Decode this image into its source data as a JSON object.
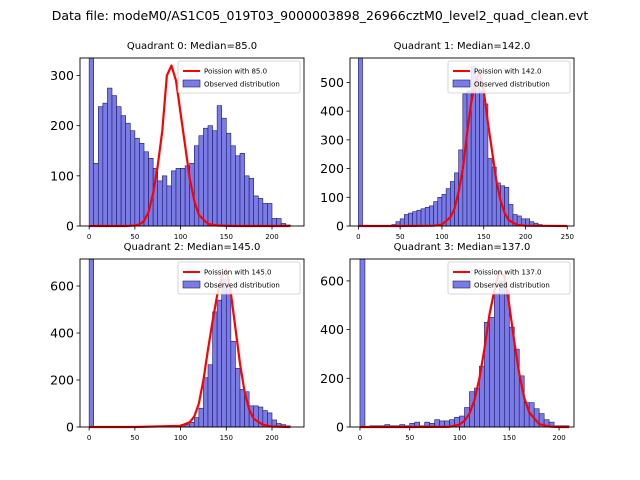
{
  "figure": {
    "suptitle": "Data file: modeM0/AS1C05_019T03_9000003898_26966cztM0_level2_quad_clean.evt"
  },
  "chart_data": [
    {
      "type": "bar",
      "title": "Quadrant 0: Median=85.0",
      "xlim": [
        -10,
        235
      ],
      "ylim": [
        0,
        335
      ],
      "xticks": [
        0,
        50,
        100,
        150,
        200
      ],
      "yticks": [
        0,
        100,
        200,
        300
      ],
      "legend": [
        "Poission with 85.0",
        "Observed distribution"
      ],
      "legend_position": "upper right",
      "hist": {
        "bin_width": 5,
        "bin_starts": [
          0,
          5,
          10,
          15,
          20,
          25,
          30,
          35,
          40,
          45,
          50,
          55,
          60,
          65,
          70,
          75,
          80,
          85,
          90,
          95,
          100,
          105,
          110,
          115,
          120,
          125,
          130,
          135,
          140,
          145,
          150,
          155,
          160,
          165,
          170,
          175,
          180,
          185,
          190,
          195,
          200,
          205,
          210,
          215
        ],
        "counts": [
          335,
          125,
          238,
          245,
          275,
          260,
          238,
          220,
          205,
          190,
          175,
          165,
          148,
          135,
          115,
          90,
          100,
          80,
          110,
          115,
          115,
          120,
          125,
          160,
          180,
          195,
          200,
          190,
          240,
          215,
          185,
          160,
          140,
          145,
          100,
          95,
          60,
          55,
          45,
          45,
          15,
          15,
          5,
          2
        ]
      },
      "poisson": {
        "label": "Poission with 85.0",
        "x": [
          0,
          20,
          40,
          50,
          55,
          60,
          65,
          70,
          75,
          80,
          85,
          90,
          95,
          100,
          105,
          110,
          115,
          120,
          130,
          140,
          160,
          180,
          200,
          220
        ],
        "y": [
          0,
          0,
          0,
          1,
          3,
          10,
          28,
          65,
          120,
          190,
          300,
          320,
          290,
          225,
          160,
          95,
          50,
          22,
          4,
          1,
          0,
          0,
          0,
          0
        ]
      }
    },
    {
      "type": "bar",
      "title": "Quadrant 1: Median=142.0",
      "xlim": [
        -10,
        258
      ],
      "ylim": [
        0,
        585
      ],
      "xticks": [
        0,
        50,
        100,
        150,
        200,
        250
      ],
      "yticks": [
        0,
        100,
        200,
        300,
        400,
        500
      ],
      "legend": [
        "Poission with 142.0",
        "Observed distribution"
      ],
      "legend_position": "upper right",
      "hist": {
        "bin_width": 5,
        "bin_starts": [
          0,
          5,
          10,
          15,
          20,
          25,
          30,
          35,
          40,
          45,
          50,
          55,
          60,
          65,
          70,
          75,
          80,
          85,
          90,
          95,
          100,
          105,
          110,
          115,
          120,
          125,
          130,
          135,
          140,
          145,
          150,
          155,
          160,
          165,
          170,
          175,
          180,
          185,
          190,
          195,
          200,
          205,
          210,
          215,
          220,
          225
        ],
        "counts": [
          585,
          0,
          0,
          0,
          0,
          0,
          0,
          0,
          5,
          15,
          25,
          40,
          45,
          50,
          55,
          60,
          65,
          70,
          85,
          100,
          110,
          130,
          155,
          185,
          265,
          460,
          470,
          555,
          510,
          470,
          425,
          235,
          205,
          150,
          140,
          135,
          75,
          40,
          35,
          25,
          25,
          15,
          10,
          5,
          0,
          0
        ]
      },
      "poisson": {
        "label": "Poission with 142.0",
        "x": [
          0,
          50,
          90,
          100,
          110,
          115,
          120,
          125,
          130,
          135,
          140,
          145,
          150,
          155,
          160,
          165,
          170,
          175,
          180,
          190,
          200,
          250
        ],
        "y": [
          0,
          0,
          1,
          5,
          30,
          60,
          120,
          200,
          320,
          430,
          500,
          540,
          470,
          360,
          260,
          160,
          90,
          45,
          20,
          4,
          1,
          0
        ]
      }
    },
    {
      "type": "bar",
      "title": "Quadrant 2: Median=145.0",
      "xlim": [
        -10,
        235
      ],
      "ylim": [
        0,
        715
      ],
      "xticks": [
        0,
        50,
        100,
        150,
        200
      ],
      "yticks": [
        0,
        200,
        400,
        600
      ],
      "legend": [
        "Poission with 145.0",
        "Observed distribution"
      ],
      "legend_position": "upper right",
      "hist": {
        "bin_width": 5,
        "bin_starts": [
          0,
          5,
          10,
          15,
          20,
          25,
          30,
          35,
          40,
          45,
          50,
          55,
          60,
          65,
          70,
          75,
          80,
          85,
          90,
          95,
          100,
          105,
          110,
          115,
          120,
          125,
          130,
          135,
          140,
          145,
          150,
          155,
          160,
          165,
          170,
          175,
          180,
          185,
          190,
          195,
          200,
          205,
          210,
          215
        ],
        "counts": [
          715,
          0,
          0,
          0,
          0,
          0,
          0,
          0,
          0,
          0,
          0,
          0,
          0,
          0,
          0,
          0,
          5,
          0,
          5,
          5,
          10,
          10,
          20,
          40,
          80,
          210,
          265,
          490,
          540,
          630,
          600,
          365,
          250,
          160,
          150,
          90,
          90,
          85,
          70,
          60,
          30,
          15,
          10,
          5
        ]
      },
      "poisson": {
        "label": "Poission with 145.0",
        "x": [
          0,
          50,
          100,
          110,
          115,
          120,
          125,
          130,
          135,
          140,
          145,
          150,
          155,
          160,
          165,
          170,
          175,
          180,
          190,
          200,
          220
        ],
        "y": [
          0,
          0,
          5,
          20,
          45,
          100,
          200,
          330,
          450,
          560,
          640,
          670,
          570,
          420,
          270,
          150,
          75,
          35,
          10,
          2,
          0
        ]
      }
    },
    {
      "type": "bar",
      "title": "Quadrant 3: Median=137.0",
      "xlim": [
        -10,
        215
      ],
      "ylim": [
        0,
        690
      ],
      "xticks": [
        0,
        50,
        100,
        150,
        200
      ],
      "yticks": [
        0,
        200,
        400,
        600
      ],
      "legend": [
        "Poission with 137.0",
        "Observed distribution"
      ],
      "legend_position": "upper right",
      "hist": {
        "bin_width": 5,
        "bin_starts": [
          0,
          5,
          10,
          15,
          20,
          25,
          30,
          35,
          40,
          45,
          50,
          55,
          60,
          65,
          70,
          75,
          80,
          85,
          90,
          95,
          100,
          105,
          110,
          115,
          120,
          125,
          130,
          135,
          140,
          145,
          150,
          155,
          160,
          165,
          170,
          175,
          180,
          185,
          190,
          195,
          200,
          205
        ],
        "counts": [
          690,
          0,
          5,
          5,
          5,
          10,
          5,
          5,
          10,
          5,
          15,
          20,
          5,
          20,
          15,
          30,
          25,
          25,
          30,
          40,
          45,
          80,
          145,
          160,
          250,
          430,
          450,
          550,
          600,
          560,
          410,
          320,
          210,
          100,
          100,
          75,
          55,
          30,
          20,
          5,
          5,
          5
        ]
      },
      "poisson": {
        "label": "Poission with 137.0",
        "x": [
          0,
          50,
          90,
          100,
          105,
          110,
          115,
          120,
          125,
          130,
          135,
          140,
          145,
          150,
          155,
          160,
          165,
          170,
          180,
          190,
          200,
          210
        ],
        "y": [
          0,
          0,
          1,
          10,
          25,
          55,
          110,
          200,
          320,
          460,
          560,
          640,
          620,
          500,
          350,
          220,
          120,
          60,
          12,
          2,
          0,
          0
        ]
      }
    }
  ]
}
